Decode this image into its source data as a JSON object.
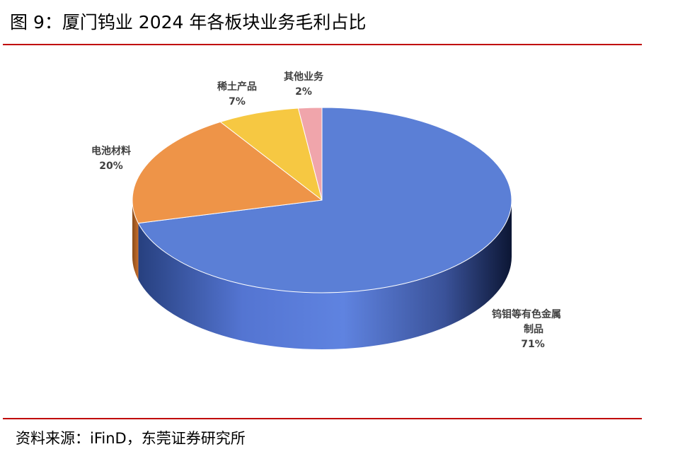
{
  "figure": {
    "title": "图 9：厦门钨业 2024 年各板块业务毛利占比",
    "source": "资料来源：iFinD，东莞证券研究所",
    "rule_color": "#c00000"
  },
  "chart_data": {
    "type": "pie",
    "title": "",
    "style": "3d",
    "slices": [
      {
        "label": [
          "钨钼等有色金属",
          "制品"
        ],
        "value": 71,
        "value_label": "71%",
        "color": "#5b7fd6"
      },
      {
        "label": [
          "电池材料"
        ],
        "value": 20,
        "value_label": "20%",
        "color": "#ee9448"
      },
      {
        "label": [
          "稀土产品"
        ],
        "value": 7,
        "value_label": "7%",
        "color": "#f6c842"
      },
      {
        "label": [
          "其他业务"
        ],
        "value": 2,
        "value_label": "2%",
        "color": "#f0a5ab"
      }
    ]
  }
}
